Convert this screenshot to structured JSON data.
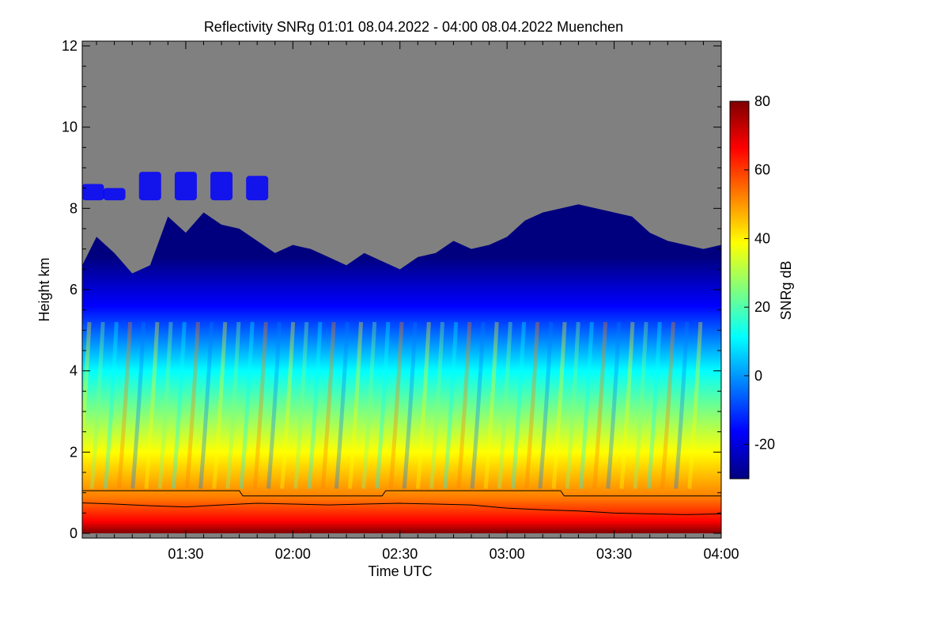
{
  "chart_data": {
    "type": "heatmap",
    "title": "Reflectivity SNRg   01:01 08.04.2022 - 04:00 08.04.2022 Muenchen",
    "xlabel": "Time UTC",
    "ylabel": "Height km",
    "colorbar_label": "SNRg dB",
    "x_range_minutes": [
      61,
      240
    ],
    "x_tick_minutes": [
      90,
      120,
      150,
      180,
      210,
      240
    ],
    "x_tick_labels": [
      "01:30",
      "02:00",
      "02:30",
      "03:00",
      "03:30",
      "04:00"
    ],
    "ylim": [
      0,
      12
    ],
    "y_ticks": [
      0,
      2,
      4,
      6,
      8,
      10,
      12
    ],
    "y_tick_labels": [
      "0",
      "2",
      "4",
      "6",
      "8",
      "10",
      "12"
    ],
    "colorbar_range": [
      -30,
      80
    ],
    "colorbar_ticks": [
      -20,
      0,
      20,
      40,
      60,
      80
    ],
    "colorbar_tick_labels": [
      "-20",
      "0",
      "20",
      "40",
      "60",
      "80"
    ],
    "background_color": "#808080",
    "colorscale": [
      "#00007f",
      "#0000ff",
      "#007fff",
      "#00ffff",
      "#7fff7f",
      "#ffff00",
      "#ff7f00",
      "#ff0000",
      "#7f0000"
    ],
    "echo_top_km": [
      [
        61,
        6.6
      ],
      [
        65,
        7.3
      ],
      [
        70,
        6.9
      ],
      [
        75,
        6.4
      ],
      [
        80,
        6.6
      ],
      [
        85,
        7.8
      ],
      [
        90,
        7.4
      ],
      [
        95,
        7.9
      ],
      [
        100,
        7.6
      ],
      [
        105,
        7.5
      ],
      [
        110,
        7.2
      ],
      [
        115,
        6.9
      ],
      [
        120,
        7.1
      ],
      [
        125,
        7.0
      ],
      [
        130,
        6.8
      ],
      [
        135,
        6.6
      ],
      [
        140,
        6.9
      ],
      [
        145,
        6.7
      ],
      [
        150,
        6.5
      ],
      [
        155,
        6.8
      ],
      [
        160,
        6.9
      ],
      [
        165,
        7.2
      ],
      [
        170,
        7.0
      ],
      [
        175,
        7.1
      ],
      [
        180,
        7.3
      ],
      [
        185,
        7.7
      ],
      [
        190,
        7.9
      ],
      [
        195,
        8.0
      ],
      [
        200,
        8.1
      ],
      [
        205,
        8.0
      ],
      [
        210,
        7.9
      ],
      [
        215,
        7.8
      ],
      [
        220,
        7.4
      ],
      [
        225,
        7.2
      ],
      [
        230,
        7.1
      ],
      [
        235,
        7.0
      ],
      [
        240,
        7.1
      ]
    ],
    "upper_layer_tops_km": [
      [
        64,
        8.6
      ],
      [
        70,
        8.5
      ],
      [
        80,
        8.9
      ],
      [
        90,
        8.9
      ],
      [
        100,
        8.9
      ],
      [
        110,
        8.8
      ]
    ],
    "boundary_layer_top_km": [
      [
        61,
        1.05
      ],
      [
        105,
        1.05
      ],
      [
        106,
        0.92
      ],
      [
        145,
        0.92
      ],
      [
        146,
        1.05
      ],
      [
        195,
        1.05
      ],
      [
        196,
        0.92
      ],
      [
        240,
        0.92
      ]
    ],
    "mixing_layer_km": [
      [
        61,
        0.75
      ],
      [
        70,
        0.72
      ],
      [
        80,
        0.68
      ],
      [
        90,
        0.65
      ],
      [
        100,
        0.7
      ],
      [
        110,
        0.74
      ],
      [
        120,
        0.72
      ],
      [
        130,
        0.7
      ],
      [
        140,
        0.72
      ],
      [
        150,
        0.74
      ],
      [
        160,
        0.72
      ],
      [
        170,
        0.7
      ],
      [
        180,
        0.62
      ],
      [
        190,
        0.58
      ],
      [
        200,
        0.55
      ],
      [
        210,
        0.5
      ],
      [
        220,
        0.48
      ],
      [
        230,
        0.46
      ],
      [
        240,
        0.48
      ]
    ]
  }
}
